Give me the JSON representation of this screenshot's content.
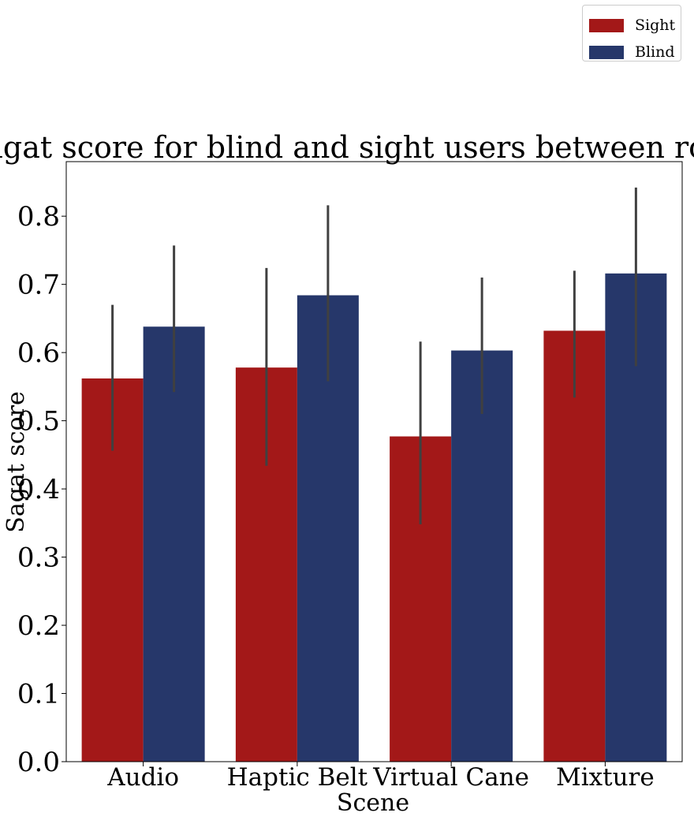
{
  "chart_data": {
    "type": "bar",
    "title": "Sagat score for blind and sight users between rounds",
    "xlabel": "Scene",
    "ylabel": "Sagat score",
    "categories": [
      "Audio",
      "Haptic Belt",
      "Virtual Cane",
      "Mixture"
    ],
    "ylim": [
      0,
      0.88
    ],
    "yticks": [
      "0.0",
      "0.1",
      "0.2",
      "0.3",
      "0.4",
      "0.5",
      "0.6",
      "0.7",
      "0.8"
    ],
    "series": [
      {
        "name": "Sight",
        "color": "#a31818",
        "values": [
          0.562,
          0.578,
          0.477,
          0.632
        ],
        "error_low": [
          0.456,
          0.434,
          0.348,
          0.534
        ],
        "error_high": [
          0.67,
          0.724,
          0.616,
          0.72
        ]
      },
      {
        "name": "Blind",
        "color": "#26376a",
        "values": [
          0.638,
          0.684,
          0.603,
          0.716
        ],
        "error_low": [
          0.542,
          0.558,
          0.51,
          0.58
        ],
        "error_high": [
          0.757,
          0.816,
          0.71,
          0.842
        ]
      }
    ],
    "legend_position": "top-right",
    "grid": false,
    "error_bar_color": "#404040"
  }
}
